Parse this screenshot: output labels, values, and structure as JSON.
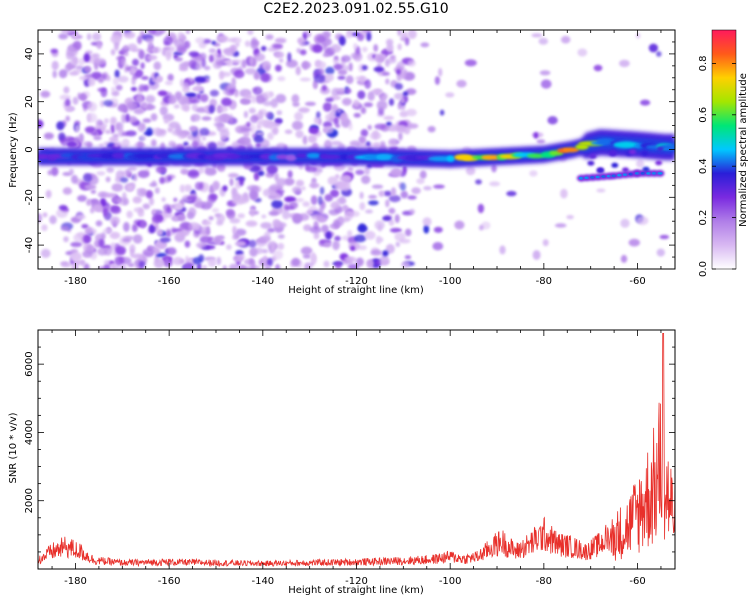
{
  "title": "C2E2.2023.091.02.55.G10",
  "colors": {
    "line": "#e8302b",
    "speckle": "#9a4be6",
    "colormap": [
      "#ffffff",
      "#d8b8f2",
      "#b07ee8",
      "#7a2ae0",
      "#2a1ed8",
      "#00c8ff",
      "#00e676",
      "#a4e600",
      "#ffd000",
      "#ff5a1a",
      "#ff1a5c"
    ]
  },
  "chart_data": [
    {
      "type": "heatmap",
      "title": "",
      "xlabel": "Height of straight line (km)",
      "ylabel": "Frequency (Hz)",
      "xlim": [
        -188,
        -52
      ],
      "ylim": [
        -50,
        50
      ],
      "x_ticks": [
        -180,
        -160,
        -140,
        -120,
        -100,
        -80,
        -60
      ],
      "y_ticks": [
        -40,
        -20,
        0,
        20,
        40
      ],
      "colorbar": {
        "label": "Normalized spectral amplitude",
        "range": [
          0.0,
          0.93
        ],
        "ticks": [
          "0.0",
          "0.2",
          "0.4",
          "0.6",
          "0.8"
        ]
      },
      "ridge": {
        "description_points": [
          {
            "x": -188,
            "y": -3
          },
          {
            "x": -140,
            "y": -3
          },
          {
            "x": -120,
            "y": -3
          },
          {
            "x": -100,
            "y": -4
          },
          {
            "x": -90,
            "y": -3
          },
          {
            "x": -80,
            "y": -2
          },
          {
            "x": -74,
            "y": 0
          },
          {
            "x": -68,
            "y": 3
          },
          {
            "x": -60,
            "y": 2
          },
          {
            "x": -54,
            "y": 1
          }
        ],
        "lower_branch": [
          {
            "x": -72,
            "y": -12
          },
          {
            "x": -65,
            "y": -11
          },
          {
            "x": -60,
            "y": -10
          },
          {
            "x": -54,
            "y": -10
          }
        ]
      }
    },
    {
      "type": "line",
      "title": "",
      "xlabel": "Height of straight line (km)",
      "ylabel": "SNR (10 * v/v)",
      "xlim": [
        -188,
        -52
      ],
      "ylim": [
        0,
        7000
      ],
      "x_ticks": [
        -180,
        -160,
        -140,
        -120,
        -100,
        -80,
        -60
      ],
      "y_ticks": [
        2000,
        4000,
        6000
      ],
      "envelope": [
        {
          "x": -188,
          "y": 350
        },
        {
          "x": -185,
          "y": 700
        },
        {
          "x": -182,
          "y": 900
        },
        {
          "x": -179,
          "y": 700
        },
        {
          "x": -176,
          "y": 350
        },
        {
          "x": -170,
          "y": 250
        },
        {
          "x": -160,
          "y": 280
        },
        {
          "x": -150,
          "y": 250
        },
        {
          "x": -140,
          "y": 220
        },
        {
          "x": -130,
          "y": 250
        },
        {
          "x": -120,
          "y": 280
        },
        {
          "x": -110,
          "y": 330
        },
        {
          "x": -104,
          "y": 380
        },
        {
          "x": -100,
          "y": 500
        },
        {
          "x": -97,
          "y": 400
        },
        {
          "x": -94,
          "y": 500
        },
        {
          "x": -91,
          "y": 900
        },
        {
          "x": -89,
          "y": 1100
        },
        {
          "x": -86,
          "y": 700
        },
        {
          "x": -83,
          "y": 1000
        },
        {
          "x": -80,
          "y": 1400
        },
        {
          "x": -77,
          "y": 1000
        },
        {
          "x": -74,
          "y": 900
        },
        {
          "x": -71,
          "y": 700
        },
        {
          "x": -68,
          "y": 1000
        },
        {
          "x": -65,
          "y": 1500
        },
        {
          "x": -62,
          "y": 2000
        },
        {
          "x": -60,
          "y": 2600
        },
        {
          "x": -58,
          "y": 3300
        },
        {
          "x": -56,
          "y": 4000
        },
        {
          "x": -55,
          "y": 5000
        },
        {
          "x": -54.5,
          "y": 6900
        },
        {
          "x": -54,
          "y": 3800
        },
        {
          "x": -53,
          "y": 3000
        },
        {
          "x": -52,
          "y": 2600
        }
      ]
    }
  ]
}
